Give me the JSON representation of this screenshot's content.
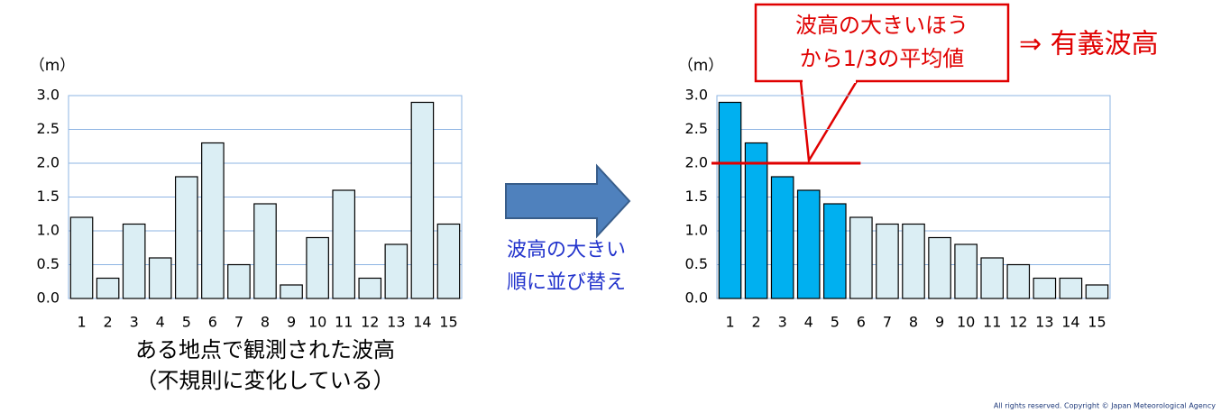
{
  "chart_data": [
    {
      "type": "bar",
      "ylabel": "（m）",
      "categories": [
        "1",
        "2",
        "3",
        "4",
        "5",
        "6",
        "7",
        "8",
        "9",
        "10",
        "11",
        "12",
        "13",
        "14",
        "15"
      ],
      "values": [
        1.2,
        0.3,
        1.1,
        0.6,
        1.8,
        2.3,
        0.5,
        1.4,
        0.2,
        0.9,
        1.6,
        0.3,
        0.8,
        2.9,
        1.1
      ],
      "color": "#dbeef4",
      "ylim": [
        0,
        3
      ],
      "yticks": [
        {
          "value": 0,
          "label": "0.0"
        },
        {
          "value": 0.5,
          "label": "0.5"
        },
        {
          "value": 1,
          "label": "1.0"
        },
        {
          "value": 1.5,
          "label": "1.5"
        },
        {
          "value": 2,
          "label": "2.0"
        },
        {
          "value": 2.5,
          "label": "2.5"
        },
        {
          "value": 3,
          "label": "3.0"
        }
      ],
      "grid": true,
      "caption": [
        "ある地点で観測された波高",
        "（不規則に変化している）"
      ]
    },
    {
      "type": "bar",
      "ylabel": "（m）",
      "categories": [
        "1",
        "2",
        "3",
        "4",
        "5",
        "6",
        "7",
        "8",
        "9",
        "10",
        "11",
        "12",
        "13",
        "14",
        "15"
      ],
      "values": [
        2.9,
        2.3,
        1.8,
        1.6,
        1.4,
        1.2,
        1.1,
        1.1,
        0.9,
        0.8,
        0.6,
        0.5,
        0.3,
        0.3,
        0.2
      ],
      "colors": [
        "#00b0f0",
        "#00b0f0",
        "#00b0f0",
        "#00b0f0",
        "#00b0f0",
        "#dbeef4",
        "#dbeef4",
        "#dbeef4",
        "#dbeef4",
        "#dbeef4",
        "#dbeef4",
        "#dbeef4",
        "#dbeef4",
        "#dbeef4",
        "#dbeef4"
      ],
      "ylim": [
        0,
        3
      ],
      "yticks": [
        {
          "value": 0,
          "label": "0.0"
        },
        {
          "value": 0.5,
          "label": "0.5"
        },
        {
          "value": 1,
          "label": "1.0"
        },
        {
          "value": 1.5,
          "label": "1.5"
        },
        {
          "value": 2,
          "label": "2.0"
        },
        {
          "value": 2.5,
          "label": "2.5"
        },
        {
          "value": 3,
          "label": "3.0"
        }
      ],
      "grid": true,
      "reference_line": 2,
      "annotation": [
        "波高の大きいほう",
        "から1/3の平均値"
      ],
      "annotation_result": "⇒ 有義波高"
    }
  ],
  "arrow_label": [
    "波高の大きい",
    "順に並び替え"
  ],
  "copyright": "All rights reserved. Copyright © Japan Meteorological Agency"
}
